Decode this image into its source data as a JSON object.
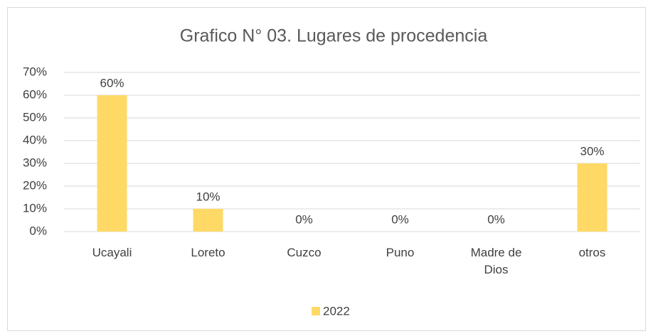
{
  "chart_data": {
    "type": "bar",
    "title": "Grafico N° 03. Lugares de procedencia",
    "categories": [
      "Ucayali",
      "Loreto",
      "Cuzco",
      "Puno",
      "Madre de Dios",
      "otros"
    ],
    "series": [
      {
        "name": "2022",
        "color": "#ffd966",
        "values": [
          60,
          10,
          0,
          0,
          0,
          30
        ],
        "value_labels": [
          "60%",
          "10%",
          "0%",
          "0%",
          "0%",
          "30%"
        ]
      }
    ],
    "ylim": [
      0,
      70
    ],
    "yticks": [
      {
        "value": 0,
        "label": "0%"
      },
      {
        "value": 10,
        "label": "10%"
      },
      {
        "value": 20,
        "label": "20%"
      },
      {
        "value": 30,
        "label": "30%"
      },
      {
        "value": 40,
        "label": "40%"
      },
      {
        "value": 50,
        "label": "50%"
      },
      {
        "value": 60,
        "label": "60%"
      },
      {
        "value": 70,
        "label": "70%"
      }
    ],
    "grid": true,
    "legend": "bottom"
  }
}
